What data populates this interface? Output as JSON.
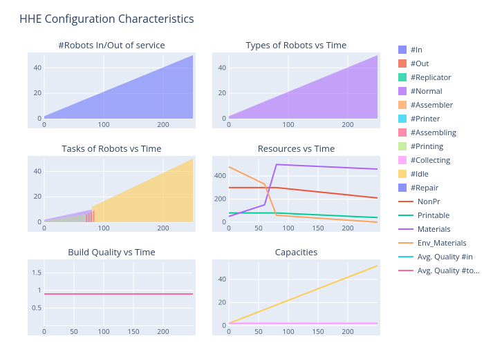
{
  "main_title": "HHE Configuration Characteristics",
  "global": {
    "bg_plot": "#e5ecf6",
    "grid_color": "#ffffff",
    "axis_text_color": "#4a5a73",
    "title_color": "#2a3f5f",
    "font_family": "Open Sans, Arial, sans-serif",
    "main_title_fontsize": 16,
    "panel_title_fontsize": 13,
    "tick_fontsize": 10
  },
  "legend": [
    {
      "label": "#In",
      "color": "#636efa",
      "swatch": "box"
    },
    {
      "label": "#Out",
      "color": "#ef553b",
      "swatch": "box"
    },
    {
      "label": "#Replicator",
      "color": "#00cc96",
      "swatch": "box"
    },
    {
      "label": "#Normal",
      "color": "#ab63fa",
      "swatch": "box"
    },
    {
      "label": "#Assembler",
      "color": "#ffa15a",
      "swatch": "box"
    },
    {
      "label": "#Printer",
      "color": "#19d3f3",
      "swatch": "box"
    },
    {
      "label": "#Assembling",
      "color": "#ff6692",
      "swatch": "box"
    },
    {
      "label": "#Printing",
      "color": "#b6e880",
      "swatch": "box"
    },
    {
      "label": "#Collecting",
      "color": "#ff97ff",
      "swatch": "box"
    },
    {
      "label": "#Idle",
      "color": "#fecb52",
      "swatch": "box"
    },
    {
      "label": "#Repair",
      "color": "#636efa",
      "swatch": "box"
    },
    {
      "label": "NonPr",
      "color": "#ef553b",
      "swatch": "line"
    },
    {
      "label": "Printable",
      "color": "#00cc96",
      "swatch": "line"
    },
    {
      "label": "Materials",
      "color": "#ab63fa",
      "swatch": "line"
    },
    {
      "label": "Env_Materials",
      "color": "#ffa15a",
      "swatch": "line"
    },
    {
      "label": "Avg. Quality #in",
      "color": "#19d3f3",
      "swatch": "line"
    },
    {
      "label": "Avg. Quality #total",
      "color": "#ff6692",
      "swatch": "line"
    }
  ],
  "panels": [
    {
      "id": "robots_in_out",
      "title": "#Robots In/Out of service",
      "xlim": [
        0,
        250
      ],
      "ylim": [
        0,
        50
      ],
      "xticks": [
        0,
        100,
        200
      ],
      "yticks": [
        0,
        20,
        40
      ],
      "kind": "area-tri",
      "series": [
        {
          "color": "#636efa",
          "opacity": 0.55,
          "y0": 2,
          "y1": 50
        }
      ]
    },
    {
      "id": "types_vs_time",
      "title": "Types of Robots vs Time",
      "xlim": [
        0,
        250
      ],
      "ylim": [
        0,
        50
      ],
      "xticks": [
        0,
        100,
        200
      ],
      "yticks": [
        0,
        20,
        40
      ],
      "kind": "area-tri",
      "series": [
        {
          "color": "#ab63fa",
          "opacity": 0.55,
          "y0": 2,
          "y1": 50
        }
      ]
    },
    {
      "id": "tasks_vs_time",
      "title": "Tasks of Robots vs Time",
      "xlim": [
        0,
        250
      ],
      "ylim": [
        0,
        50
      ],
      "xticks": [
        0,
        100,
        200
      ],
      "yticks": [
        0,
        20,
        40
      ],
      "kind": "tasks"
    },
    {
      "id": "resources_vs_time",
      "title": "Resources vs Time",
      "xlim": [
        0,
        250
      ],
      "ylim": [
        0,
        550
      ],
      "xticks": [
        0,
        50,
        100,
        150,
        200
      ],
      "yticks": [
        0,
        200,
        400
      ],
      "kind": "resources",
      "lines": {
        "nonpr": {
          "color": "#ef553b",
          "pts": [
            [
              0,
              300
            ],
            [
              80,
              300
            ],
            [
              250,
              210
            ]
          ]
        },
        "printable": {
          "color": "#00cc96",
          "pts": [
            [
              0,
              80
            ],
            [
              80,
              80
            ],
            [
              250,
              40
            ]
          ]
        },
        "materials": {
          "color": "#ab63fa",
          "pts": [
            [
              0,
              50
            ],
            [
              60,
              150
            ],
            [
              80,
              500
            ],
            [
              250,
              460
            ]
          ]
        },
        "env": {
          "color": "#ffa15a",
          "pts": [
            [
              0,
              480
            ],
            [
              60,
              330
            ],
            [
              80,
              60
            ],
            [
              250,
              0
            ]
          ]
        }
      }
    },
    {
      "id": "build_quality",
      "title": "Build Quality vs Time",
      "xlim": [
        0,
        250
      ],
      "ylim": [
        0,
        1.8
      ],
      "xticks": [
        0,
        50,
        100,
        150,
        200
      ],
      "yticks": [
        0.5,
        1,
        1.5
      ],
      "kind": "quality",
      "lines": {
        "in": {
          "color": "#19d3f3",
          "y": 0.9
        },
        "total": {
          "color": "#ff6692",
          "y": 0.9
        }
      }
    },
    {
      "id": "capacities",
      "title": "Capacities",
      "xlim": [
        0,
        250
      ],
      "ylim": [
        0,
        55
      ],
      "xticks": [
        0,
        50,
        100,
        150,
        200
      ],
      "yticks": [
        0,
        20,
        40
      ],
      "kind": "capacities",
      "lines": {
        "build": {
          "color": "#fecb52",
          "pts": [
            [
              0,
              2
            ],
            [
              250,
              52
            ]
          ]
        },
        "flat": {
          "color": "#ff97ff",
          "pts": [
            [
              0,
              2
            ],
            [
              250,
              2
            ]
          ]
        }
      }
    }
  ]
}
